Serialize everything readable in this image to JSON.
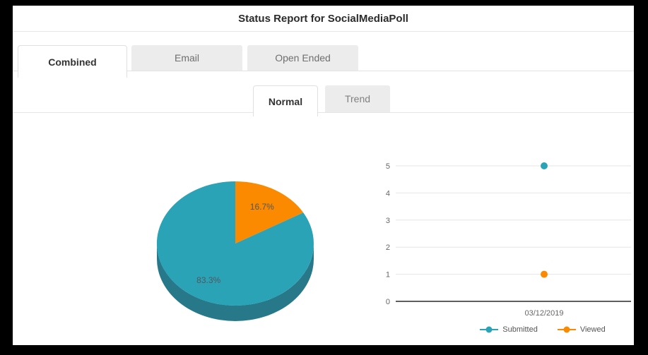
{
  "window": {
    "frame_color": "#000000",
    "background": "#ffffff"
  },
  "header": {
    "title": "Status Report for SocialMediaPoll"
  },
  "tabs": {
    "items": [
      {
        "label": "Combined",
        "active": true
      },
      {
        "label": "Email",
        "active": false
      },
      {
        "label": "Open Ended",
        "active": false
      }
    ]
  },
  "subtabs": {
    "items": [
      {
        "label": "Normal",
        "active": true
      },
      {
        "label": "Trend",
        "active": false
      }
    ]
  },
  "colors": {
    "teal": "#2BA3B7",
    "teal_dark": "#27798A",
    "orange": "#FB8A00",
    "grid": "#E6E6E6",
    "axis_zero": "#5E5E5E",
    "tick_label": "#666666",
    "pie_label": "#51575C",
    "legend_text": "#555555"
  },
  "chart_data": [
    {
      "type": "pie",
      "style": "3d",
      "start_angle": 0,
      "slices": [
        {
          "name": "Viewed",
          "value": 16.7,
          "label": "16.7%",
          "color": "#FB8A00"
        },
        {
          "name": "Submitted",
          "value": 83.3,
          "label": "83.3%",
          "color": "#2BA3B7"
        }
      ]
    },
    {
      "type": "scatter",
      "categories": [
        "03/12/2019"
      ],
      "series": [
        {
          "name": "Submitted",
          "color": "#2BA3B7",
          "values": [
            5
          ]
        },
        {
          "name": "Viewed",
          "color": "#FB8A00",
          "values": [
            1
          ]
        }
      ],
      "ylim": [
        0,
        5
      ],
      "yticks": [
        0,
        1,
        2,
        3,
        4,
        5
      ],
      "grid": true,
      "legend_position": "bottom"
    }
  ]
}
